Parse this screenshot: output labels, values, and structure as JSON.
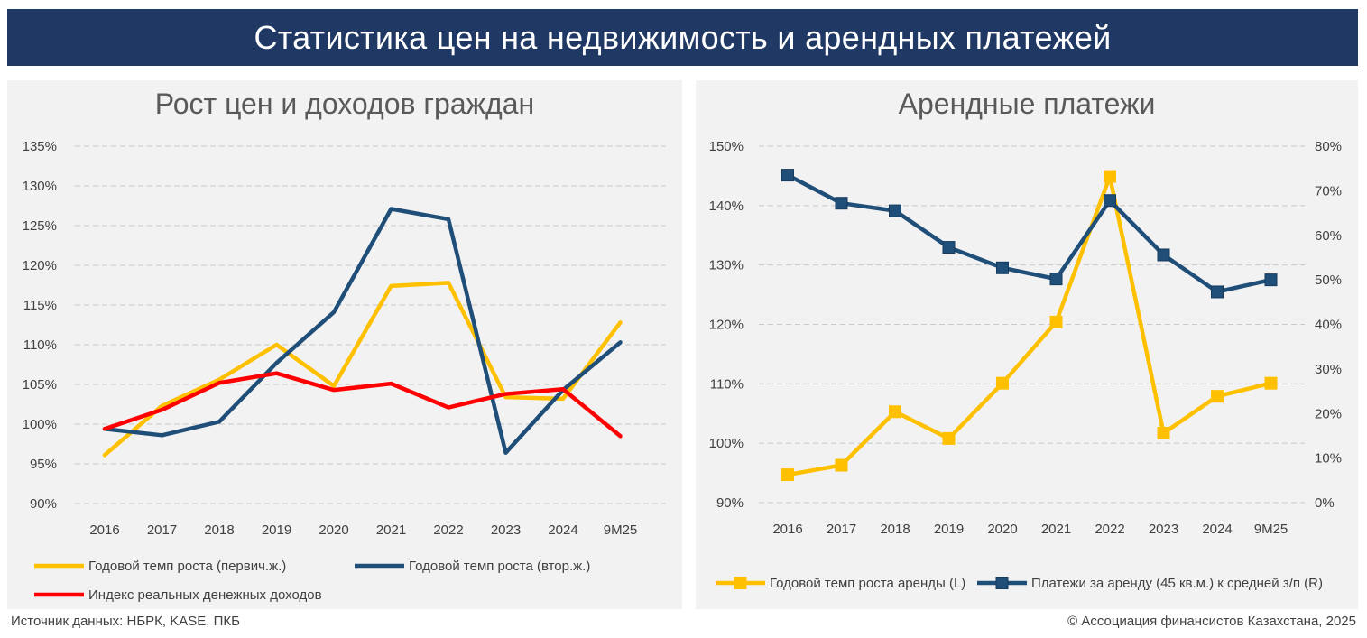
{
  "page": {
    "title": "Статистика цен на недвижимость и арендных платежей",
    "source": "Источник данных: НБРК, KASE, ПКБ",
    "copyright": "© Ассоциация финансистов Казахстана, 2025"
  },
  "colors": {
    "banner": "#1f3864",
    "panel_bg": "#f2f2f2",
    "gold": "#ffc000",
    "navy": "#1f4e79",
    "red": "#ff0000",
    "grid": "#c8c8c8"
  },
  "chart_data": [
    {
      "type": "line",
      "title": "Рост цен и доходов граждан",
      "categories": [
        "2016",
        "2017",
        "2018",
        "2019",
        "2020",
        "2021",
        "2022",
        "2023",
        "2024",
        "9M25"
      ],
      "ylim": [
        90,
        135
      ],
      "yticks": [
        "90%",
        "95%",
        "100%",
        "105%",
        "110%",
        "115%",
        "120%",
        "125%",
        "130%",
        "135%"
      ],
      "grid": true,
      "legend_position": "bottom",
      "series": [
        {
          "name": "Годовой темп роста (первич.ж.)",
          "color": "#ffc000",
          "axis": "left",
          "values": [
            96.1,
            102.3,
            105.6,
            110.0,
            104.8,
            117.4,
            117.8,
            103.4,
            103.2,
            112.8
          ]
        },
        {
          "name": "Годовой темп роста (втор.ж.)",
          "color": "#1f4e79",
          "axis": "left",
          "values": [
            99.4,
            98.6,
            100.3,
            107.7,
            114.1,
            127.1,
            125.8,
            96.4,
            104.3,
            110.3
          ]
        },
        {
          "name": "Индекс реальных денежных доходов",
          "color": "#ff0000",
          "axis": "left",
          "values": [
            99.4,
            101.8,
            105.2,
            106.4,
            104.3,
            105.1,
            102.1,
            103.8,
            104.4,
            98.5
          ]
        }
      ]
    },
    {
      "type": "line",
      "title": "Арендные платежи",
      "categories": [
        "2016",
        "2017",
        "2018",
        "2019",
        "2020",
        "2021",
        "2022",
        "2023",
        "2024",
        "9M25"
      ],
      "ylim_left": [
        90,
        150
      ],
      "ylim_right": [
        0,
        80
      ],
      "yticks_left": [
        "90%",
        "100%",
        "110%",
        "120%",
        "130%",
        "140%",
        "150%"
      ],
      "yticks_right": [
        "0%",
        "10%",
        "20%",
        "30%",
        "40%",
        "50%",
        "60%",
        "70%",
        "80%"
      ],
      "grid": true,
      "legend_position": "bottom",
      "series": [
        {
          "name": "Годовой темп роста аренды (L)",
          "color": "#ffc000",
          "axis": "left",
          "marker": "square",
          "values": [
            94.7,
            96.3,
            105.3,
            100.8,
            110.1,
            120.4,
            144.9,
            101.7,
            107.9,
            110.1
          ]
        },
        {
          "name": "Платежи за аренду (45 кв.м.) к средней з/п (R)",
          "color": "#1f4e79",
          "axis": "right",
          "marker": "square",
          "values": [
            73.5,
            67.2,
            65.5,
            57.3,
            52.7,
            50.2,
            67.8,
            55.6,
            47.3,
            50.0
          ]
        }
      ]
    }
  ]
}
